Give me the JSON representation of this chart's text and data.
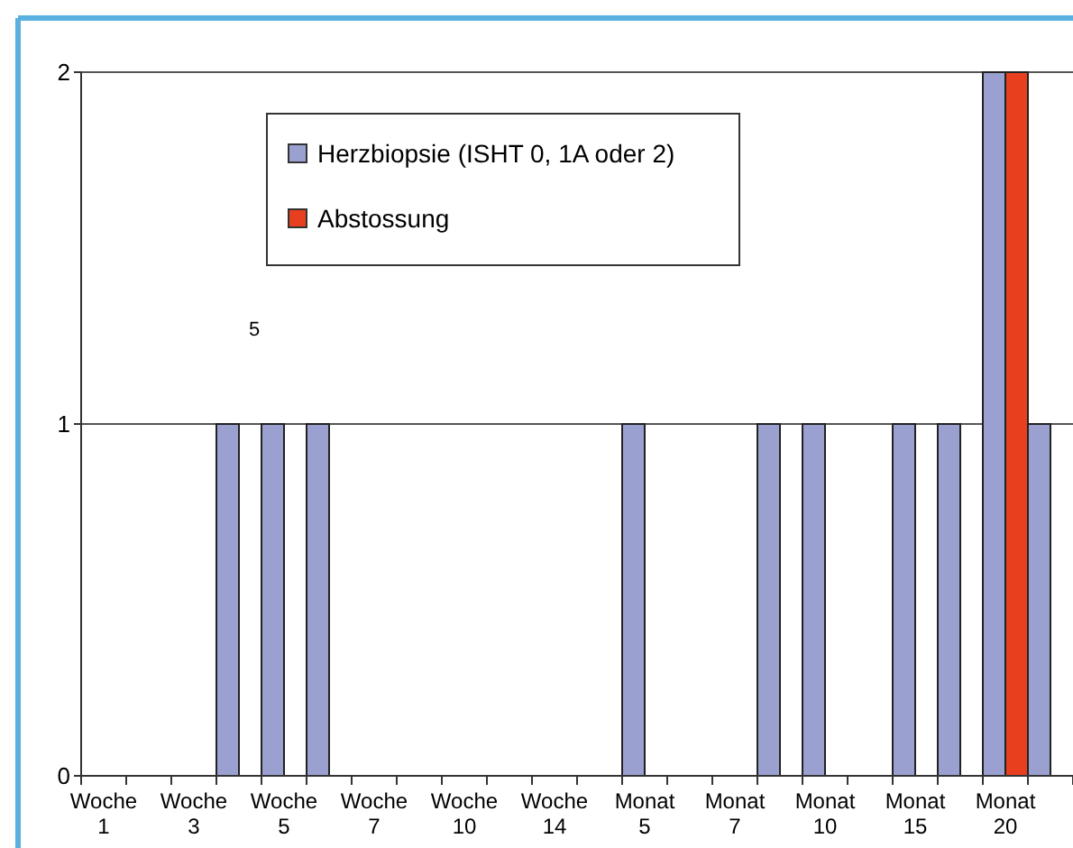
{
  "chart_data": {
    "type": "bar",
    "categories": [
      "Woche 1",
      null,
      "Woche 3",
      null,
      "Woche 5",
      null,
      "Woche 7",
      null,
      "Woche 10",
      null,
      "Woche 14",
      null,
      "Monat 5",
      null,
      "Monat 7",
      null,
      "Monat 10",
      null,
      "Monat 15",
      null,
      "Monat 20",
      null
    ],
    "series": [
      {
        "name": "Herzbiopsie (ISHT 0, 1A oder 2)",
        "color": "#9aa0d0",
        "values": [
          0,
          0,
          0,
          1,
          1,
          1,
          0,
          0,
          0,
          0,
          0,
          0,
          1,
          0,
          0,
          1,
          1,
          0,
          1,
          1,
          2,
          1
        ]
      },
      {
        "name": "Abstossung",
        "color": "#e8401f",
        "values": [
          0,
          0,
          0,
          0,
          0,
          0,
          0,
          0,
          0,
          0,
          0,
          0,
          0,
          0,
          0,
          0,
          0,
          0,
          0,
          0,
          2,
          0
        ]
      }
    ],
    "ylim": [
      0,
      2
    ],
    "yticks": [
      0,
      1,
      2
    ],
    "grid": "y",
    "legend": "top left",
    "annotations": [
      "5"
    ]
  }
}
